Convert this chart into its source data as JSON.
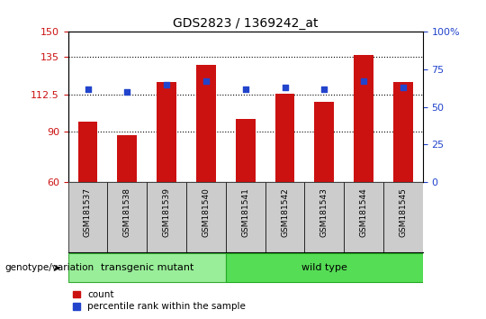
{
  "title": "GDS2823 / 1369242_at",
  "samples": [
    "GSM181537",
    "GSM181538",
    "GSM181539",
    "GSM181540",
    "GSM181541",
    "GSM181542",
    "GSM181543",
    "GSM181544",
    "GSM181545"
  ],
  "counts": [
    96,
    88,
    120,
    130,
    98,
    113,
    108,
    136,
    120
  ],
  "percentiles": [
    62,
    60,
    65,
    67,
    62,
    63,
    62,
    67,
    63
  ],
  "ylim_left": [
    60,
    150
  ],
  "yticks_left": [
    60,
    90,
    112.5,
    135,
    150
  ],
  "ytick_labels_left": [
    "60",
    "90",
    "112.5",
    "135",
    "150"
  ],
  "ylim_right": [
    0,
    100
  ],
  "yticks_right": [
    0,
    25,
    50,
    75,
    100
  ],
  "ytick_labels_right": [
    "0",
    "25",
    "50",
    "75",
    "100%"
  ],
  "bar_color": "#cc1111",
  "scatter_color": "#2244cc",
  "group1_label": "transgenic mutant",
  "group2_label": "wild type",
  "group1_color": "#99ee99",
  "group2_color": "#55dd55",
  "group1_n": 4,
  "group2_n": 5,
  "genotype_label": "genotype/variation",
  "legend_count_label": "count",
  "legend_pct_label": "percentile rank within the sample",
  "tick_label_color_left": "#cc1111",
  "tick_label_color_right": "#2244cc",
  "dotted_yticks": [
    90,
    112.5,
    135
  ],
  "bar_width": 0.5,
  "fig_width": 5.4,
  "fig_height": 3.54,
  "dpi": 100
}
